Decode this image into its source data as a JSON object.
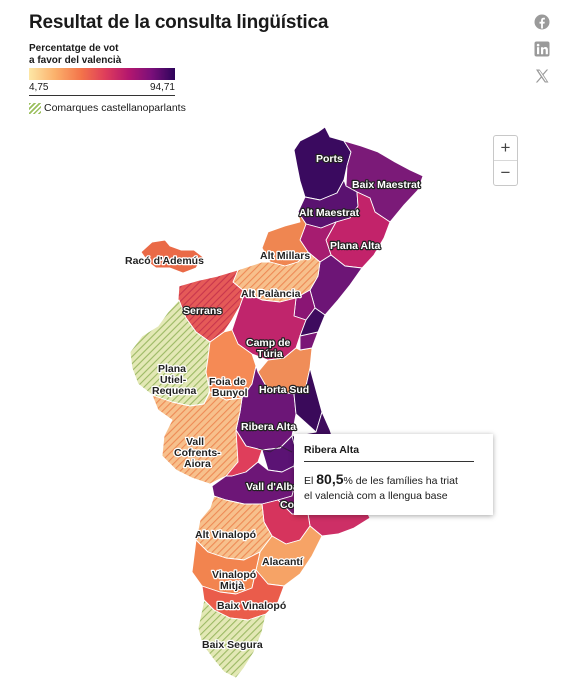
{
  "title": "Resultat de la consulta lingüística",
  "legend": {
    "title_line1": "Percentatge de vot",
    "title_line2": "a favor del valencià",
    "min": "4,75",
    "max": "94,71",
    "hatch_label": "Comarques castellanoparlants",
    "colors": [
      "#fde7a6",
      "#fbb06b",
      "#f3734a",
      "#df3e5b",
      "#b5176e",
      "#7a0f7a",
      "#2d045a"
    ]
  },
  "share": {
    "icons": [
      "facebook-icon",
      "linkedin-icon",
      "x-icon"
    ]
  },
  "zoom": {
    "in_label": "+",
    "out_label": "−"
  },
  "map": {
    "labels": {
      "ports": "Ports",
      "baix_maestrat": "Baix Maestrat",
      "alt_maestrat": "Alt Maestrat",
      "plana_alta": "Plana Alta",
      "raco_ademus": "Racó d'Ademús",
      "alt_millars": "Alt Millars",
      "alt_palancia": "Alt Palància",
      "serrans": "Serrans",
      "camp_turia_1": "Camp de",
      "camp_turia_2": "Túria",
      "plana_requena_1": "Plana",
      "plana_requena_2": "Utiel-",
      "plana_requena_3": "Requena",
      "foia_bunyol_1": "Foia de",
      "foia_bunyol_2": "Bunyol",
      "horta_sud": "Horta Sud",
      "ribera_alta": "Ribera Alta",
      "vall_cofrents_1": "Vall",
      "vall_cofrents_2": "Cofrents-",
      "vall_cofrents_3": "Aiora",
      "vall_albaida": "Vall d'Albaida",
      "comtat": "Co",
      "alt_vinalopo": "Alt Vinalopó",
      "alacanti": "Alacantí",
      "vinalopo_mitja_1": "Vinalopó",
      "vinalopo_mitja_2": "Mitjà",
      "baix_vinalopo": "Baix Vinalopó",
      "baix_segura": "Baix Segura"
    }
  },
  "tooltip": {
    "title": "Ribera Alta",
    "prefix": "El ",
    "value": "80,5",
    "suffix_line1": "% de les famílies ha triat",
    "line2": "el valencià com a llengua base"
  }
}
